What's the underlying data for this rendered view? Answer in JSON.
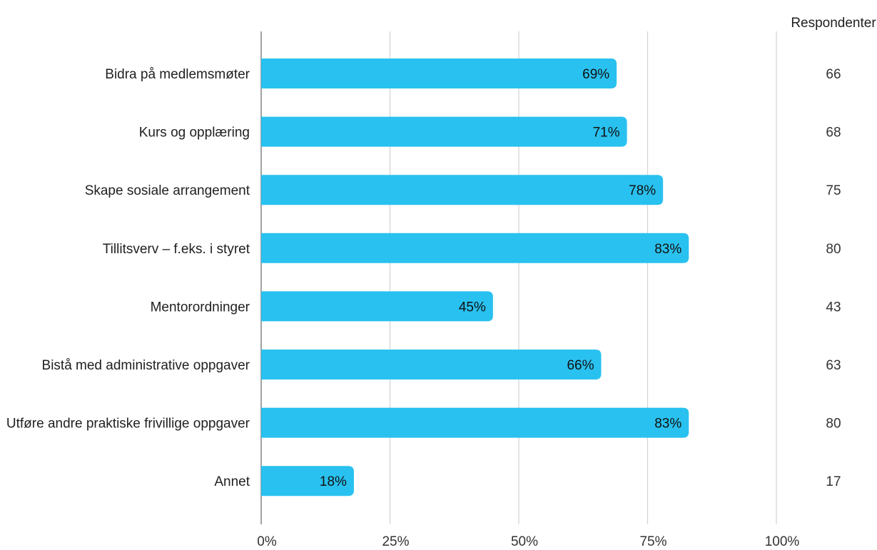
{
  "chart_data": {
    "type": "bar",
    "orientation": "horizontal",
    "categories": [
      "Bidra på medlemsmøter",
      "Kurs og opplæring",
      "Skape sosiale arrangement",
      "Tillitsverv – f.eks. i styret",
      "Mentorordninger",
      "Bistå med administrative oppgaver",
      "Utføre andre praktiske frivillige oppgaver",
      "Annet"
    ],
    "values": [
      69,
      71,
      78,
      83,
      45,
      66,
      83,
      18
    ],
    "value_labels": [
      "69%",
      "71%",
      "78%",
      "83%",
      "45%",
      "66%",
      "83%",
      "18%"
    ],
    "respondents_header": "Respondenter",
    "respondents": [
      "66",
      "68",
      "75",
      "80",
      "43",
      "63",
      "80",
      "17"
    ],
    "x_ticks": [
      0,
      25,
      50,
      75,
      100
    ],
    "x_tick_labels": [
      "0%",
      "25%",
      "50%",
      "75%",
      "100%"
    ],
    "xlim": [
      0,
      100
    ],
    "grid": true,
    "bar_color": "#29c1ef",
    "grid_color": "#d3d3d3",
    "axis_color": "#8a8a8a"
  }
}
